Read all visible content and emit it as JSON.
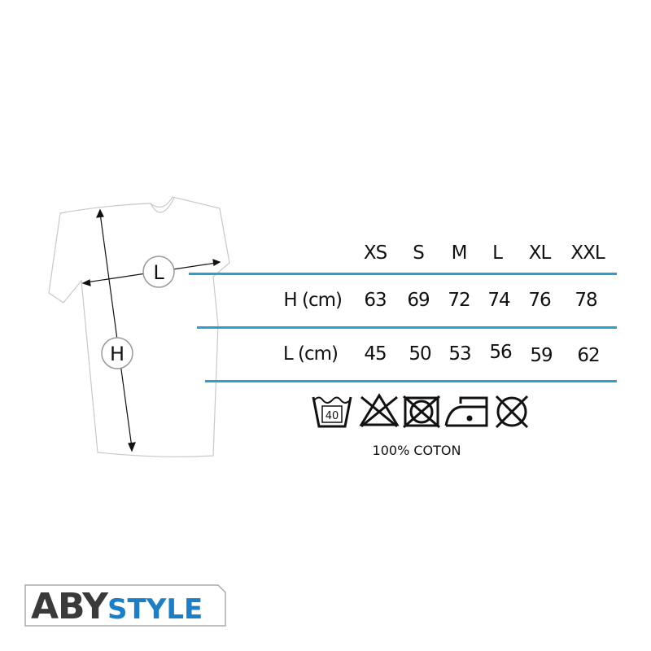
{
  "diagram": {
    "width_marker": "L",
    "height_marker": "H"
  },
  "size_table": {
    "sizes": [
      "XS",
      "S",
      "M",
      "L",
      "XL",
      "XXL"
    ],
    "rows": [
      {
        "label": "H (cm)",
        "values": [
          "63",
          "69",
          "72",
          "74",
          "76",
          "78"
        ]
      },
      {
        "label": "L (cm)",
        "values": [
          "45",
          "50",
          "53",
          "56",
          "59",
          "62"
        ]
      }
    ],
    "line_color": "#2a9fd0"
  },
  "care": {
    "icons": [
      "wash-40-icon",
      "no-bleach-icon",
      "no-tumble-dry-icon",
      "iron-low-icon",
      "no-dry-clean-icon"
    ],
    "wash_temp": "40",
    "material": "100% COTON"
  },
  "brand": {
    "logo_part1": "ABY",
    "logo_part2": "STYLE",
    "colors": {
      "dark": "#3a3a3a",
      "blue": "#1a7fc6"
    }
  }
}
